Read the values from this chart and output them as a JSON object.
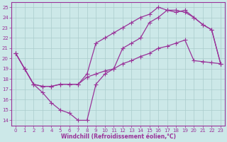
{
  "background_color": "#cce8e8",
  "grid_color": "#aacccc",
  "line_color": "#993399",
  "xlim": [
    -0.5,
    23.5
  ],
  "ylim": [
    13.5,
    25.5
  ],
  "yticks": [
    14,
    15,
    16,
    17,
    18,
    19,
    20,
    21,
    22,
    23,
    24,
    25
  ],
  "xticks": [
    0,
    1,
    2,
    3,
    4,
    5,
    6,
    7,
    8,
    9,
    10,
    11,
    12,
    13,
    14,
    15,
    16,
    17,
    18,
    19,
    20,
    21,
    22,
    23
  ],
  "xlabel": "Windchill (Refroidissement éolien,°C)",
  "curve1_x": [
    0,
    1,
    2,
    3,
    4,
    5,
    6,
    7,
    8,
    9,
    10,
    11,
    12,
    13,
    14,
    15,
    16,
    17,
    18,
    19,
    20,
    21,
    22,
    23
  ],
  "curve1_y": [
    20.5,
    19.0,
    17.5,
    17.3,
    17.3,
    17.5,
    17.5,
    17.5,
    18.5,
    21.5,
    22.0,
    22.5,
    23.0,
    23.5,
    24.0,
    24.3,
    25.0,
    24.7,
    24.7,
    24.5,
    24.0,
    23.3,
    22.8,
    19.5
  ],
  "curve2_x": [
    0,
    1,
    2,
    3,
    4,
    5,
    6,
    7,
    8,
    9,
    10,
    11,
    12,
    13,
    14,
    15,
    16,
    17,
    18,
    19,
    20,
    21,
    22,
    23
  ],
  "curve2_y": [
    20.5,
    19.0,
    17.5,
    16.7,
    15.7,
    15.0,
    14.7,
    14.0,
    14.0,
    17.5,
    18.5,
    19.0,
    21.0,
    21.5,
    22.0,
    23.5,
    24.0,
    24.7,
    24.5,
    24.7,
    24.0,
    23.3,
    22.8,
    19.5
  ],
  "curve3_x": [
    0,
    1,
    2,
    3,
    4,
    5,
    6,
    7,
    8,
    9,
    10,
    11,
    12,
    13,
    14,
    15,
    16,
    17,
    18,
    19,
    20,
    21,
    22,
    23
  ],
  "curve3_y": [
    20.5,
    19.0,
    17.5,
    17.3,
    17.3,
    17.5,
    17.5,
    17.5,
    18.2,
    18.5,
    18.8,
    19.0,
    19.5,
    19.8,
    20.2,
    20.5,
    21.0,
    21.2,
    21.5,
    21.8,
    19.8,
    19.7,
    19.6,
    19.5
  ]
}
